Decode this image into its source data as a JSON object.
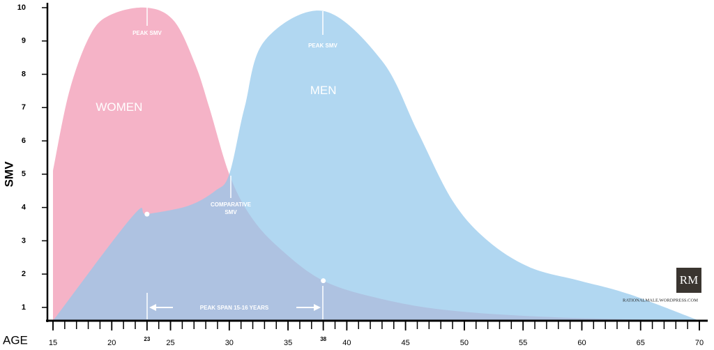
{
  "chart_data": {
    "type": "area",
    "y_label": "SMV",
    "x_label": "AGE",
    "xlim": [
      15,
      70
    ],
    "ylim": [
      0.6,
      10
    ],
    "xticks": [
      15,
      20,
      23,
      25,
      30,
      35,
      38,
      40,
      45,
      50,
      55,
      60,
      65,
      70
    ],
    "yticks": [
      1,
      2,
      3,
      4,
      5,
      6,
      7,
      8,
      9,
      10
    ],
    "series": [
      {
        "name": "WOMEN",
        "color": "#f5b3c7",
        "x": [
          15,
          16.4,
          18.2,
          20,
          23,
          25.3,
          27.1,
          28.3,
          30,
          31.8,
          34.2,
          38,
          43,
          49,
          58,
          70
        ],
        "values": [
          5.1,
          7.5,
          9.2,
          9.8,
          10,
          9.6,
          8.3,
          7,
          5,
          3.75,
          2.8,
          1.8,
          1.25,
          0.9,
          0.7,
          0.6
        ]
      },
      {
        "name": "MEN",
        "color": "#93c8ec",
        "x": [
          15,
          21.8,
          23,
          26.5,
          28.8,
          30,
          31.3,
          33,
          38,
          43,
          46,
          49,
          52,
          55.6,
          59.8,
          64,
          70
        ],
        "values": [
          0.6,
          3.75,
          3.8,
          4.05,
          4.5,
          5,
          7,
          9,
          9.9,
          8.4,
          6.3,
          4.2,
          3,
          2.2,
          1.8,
          1.4,
          0.6
        ]
      }
    ],
    "markers": {
      "x": [
        23,
        38
      ],
      "values": [
        3.8,
        1.8
      ]
    },
    "annotations": {
      "peak_women": "PEAK SMV",
      "peak_men": "PEAK SMV",
      "comparative_1": "COMPARATIVE",
      "comparative_2": "SMV",
      "peak_span": "PEAK SPAN 15-16 YEARS",
      "website": "RATIONALMALE.WORDPRESS.COM",
      "logo": "RM"
    }
  }
}
